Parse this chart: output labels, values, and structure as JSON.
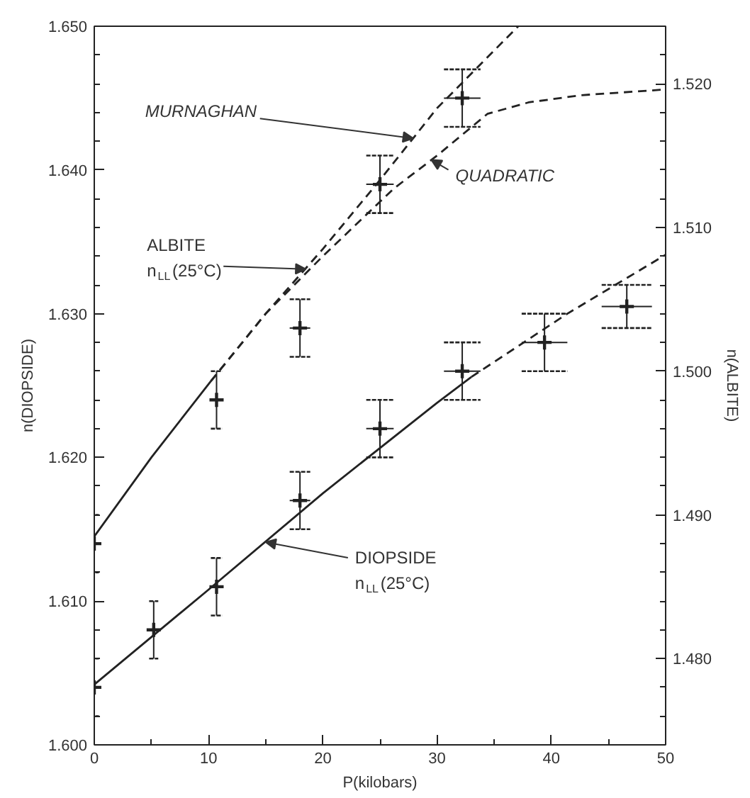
{
  "chart_data": {
    "type": "scatter",
    "xlabel": "P(kilobars)",
    "ylabel": "n(DIOPSIDE)",
    "y2label": "n(ALBITE)",
    "xlim": [
      0,
      50
    ],
    "ylim": [
      1.6,
      1.65
    ],
    "y2lim": [
      1.474,
      1.524
    ],
    "xticks": [
      0,
      {
        "value": 5,
        "label": null
      },
      10,
      {
        "value": 15,
        "label": null
      },
      20,
      {
        "value": 25,
        "label": null
      },
      30,
      {
        "value": 35,
        "label": null
      },
      40,
      {
        "value": 45,
        "label": null
      },
      50
    ],
    "yticks": [
      {
        "value": 1.6,
        "label": "1.600"
      },
      {
        "value": 1.602,
        "label": null
      },
      {
        "value": 1.604,
        "label": null
      },
      {
        "value": 1.606,
        "label": null
      },
      {
        "value": 1.608,
        "label": null
      },
      {
        "value": 1.61,
        "label": "1.610"
      },
      {
        "value": 1.612,
        "label": null
      },
      {
        "value": 1.614,
        "label": null
      },
      {
        "value": 1.616,
        "label": null
      },
      {
        "value": 1.618,
        "label": null
      },
      {
        "value": 1.62,
        "label": "1.620"
      },
      {
        "value": 1.622,
        "label": null
      },
      {
        "value": 1.624,
        "label": null
      },
      {
        "value": 1.626,
        "label": null
      },
      {
        "value": 1.628,
        "label": null
      },
      {
        "value": 1.63,
        "label": "1.630"
      },
      {
        "value": 1.632,
        "label": null
      },
      {
        "value": 1.634,
        "label": null
      },
      {
        "value": 1.636,
        "label": null
      },
      {
        "value": 1.638,
        "label": null
      },
      {
        "value": 1.64,
        "label": "1.640"
      },
      {
        "value": 1.642,
        "label": null
      },
      {
        "value": 1.644,
        "label": null
      },
      {
        "value": 1.646,
        "label": null
      },
      {
        "value": 1.648,
        "label": null
      },
      {
        "value": 1.65,
        "label": "1.650"
      }
    ],
    "y2ticks": [
      {
        "value": 1.476,
        "label": null
      },
      {
        "value": 1.478,
        "label": null
      },
      {
        "value": 1.48,
        "label": "1.480"
      },
      {
        "value": 1.482,
        "label": null
      },
      {
        "value": 1.484,
        "label": null
      },
      {
        "value": 1.486,
        "label": null
      },
      {
        "value": 1.488,
        "label": null
      },
      {
        "value": 1.49,
        "label": "1.490"
      },
      {
        "value": 1.492,
        "label": null
      },
      {
        "value": 1.494,
        "label": null
      },
      {
        "value": 1.496,
        "label": null
      },
      {
        "value": 1.498,
        "label": null
      },
      {
        "value": 1.5,
        "label": "1.500"
      },
      {
        "value": 1.502,
        "label": null
      },
      {
        "value": 1.504,
        "label": null
      },
      {
        "value": 1.506,
        "label": null
      },
      {
        "value": 1.508,
        "label": null
      },
      {
        "value": 1.51,
        "label": "1.510"
      },
      {
        "value": 1.512,
        "label": null
      },
      {
        "value": 1.514,
        "label": null
      },
      {
        "value": 1.516,
        "label": null
      },
      {
        "value": 1.518,
        "label": null
      },
      {
        "value": 1.52,
        "label": "1.520"
      },
      {
        "value": 1.522,
        "label": null
      }
    ],
    "grid": false,
    "series": [
      {
        "axis": "y2",
        "color": "#222222",
        "marker": "cross",
        "x": [
          0,
          10.7,
          18,
          25,
          32.2
        ],
        "values": [
          1.488,
          1.498,
          1.503,
          1.513,
          1.519
        ],
        "errors": [
          0.002,
          0.002,
          0.002,
          0.002,
          0.002
        ],
        "xerrors": [
          0.4,
          0.5,
          0.9,
          1.2,
          1.6
        ]
      },
      {
        "color": "#222222",
        "marker": "cross",
        "x": [
          0,
          5.2,
          10.7,
          18,
          25,
          32.2,
          39.4,
          46.6
        ],
        "values": [
          1.604,
          1.608,
          1.611,
          1.617,
          1.622,
          1.626,
          1.628,
          1.6305
        ],
        "errors": [
          0.002,
          0.002,
          0.002,
          0.002,
          0.002,
          0.002,
          0.002,
          0.0015
        ],
        "xerrors": [
          0.4,
          0.4,
          0.5,
          0.9,
          1.2,
          1.6,
          2.0,
          2.2
        ]
      },
      {
        "type": "line",
        "axis": "y2",
        "color": "#222222",
        "line_style": "solid",
        "x": [
          0,
          5,
          10.2
        ],
        "values": [
          1.4885,
          1.494,
          1.4993
        ]
      },
      {
        "type": "line",
        "axis": "y2",
        "color": "#222222",
        "line_style": "dashed",
        "x": [
          10.2,
          15,
          20,
          25,
          30,
          37.1
        ],
        "values": [
          1.4993,
          1.504,
          1.5085,
          1.5133,
          1.5183,
          1.524
        ]
      },
      {
        "type": "line",
        "axis": "y2",
        "color": "#222222",
        "line_style": "dashed",
        "x": [
          10.2,
          15,
          20,
          26.2,
          30,
          34.4,
          38,
          42.6,
          50
        ],
        "values": [
          1.4993,
          1.504,
          1.508,
          1.5127,
          1.515,
          1.5179,
          1.5187,
          1.5192,
          1.5196
        ]
      },
      {
        "type": "line",
        "color": "#222222",
        "line_style": "solid",
        "x": [
          0,
          10,
          20,
          30,
          33
        ],
        "values": [
          1.6042,
          1.6108,
          1.6175,
          1.6238,
          1.6256
        ]
      },
      {
        "type": "line",
        "color": "#222222",
        "line_style": "dashed",
        "x": [
          33,
          41.4,
          50
        ],
        "values": [
          1.6256,
          1.63,
          1.6341
        ]
      }
    ],
    "annotations": [
      {
        "text": "MURNAGHAN",
        "x": 27.9,
        "y": 1.6422
      },
      {
        "text": "QUADRATIC",
        "x": 29.5,
        "y": 1.6407
      },
      {
        "text": "ALBITE\nn$_{LL}$(25°C)",
        "x": 18.5,
        "y": 1.6331
      },
      {
        "text": "DIOPSIDE\nn$_{LL}$(25°C)",
        "x": 15,
        "y": 1.6141
      }
    ]
  }
}
